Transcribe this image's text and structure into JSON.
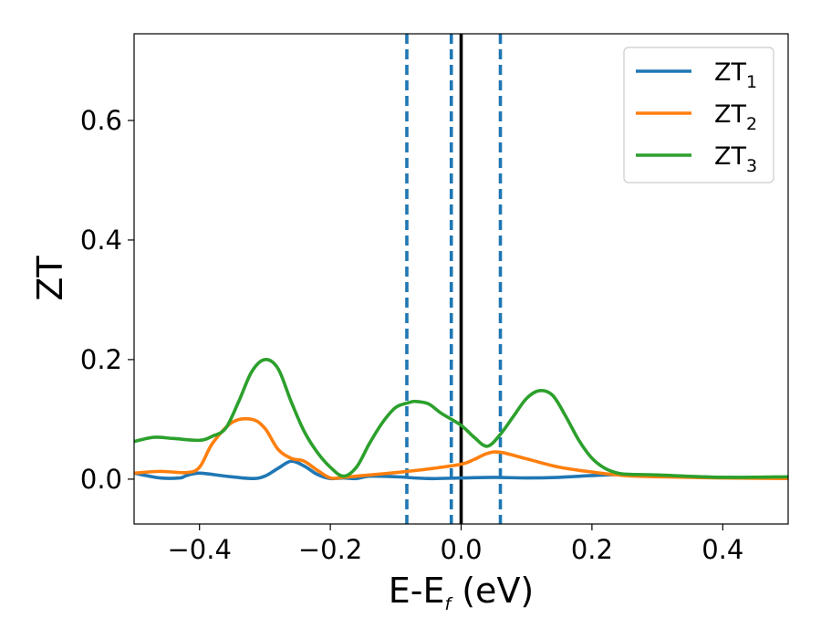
{
  "chart_data": {
    "type": "line",
    "title": "",
    "xlabel": "E-E",
    "xlabel_sub": "f",
    "xlabel_unit": " (eV)",
    "ylabel": "ZT",
    "xlim": [
      -0.5,
      0.5
    ],
    "ylim": [
      -0.075,
      0.745
    ],
    "xticks": [
      -0.4,
      -0.2,
      0.0,
      0.2,
      0.4
    ],
    "xtick_labels": [
      "−0.4",
      "−0.2",
      "0.0",
      "0.2",
      "0.4"
    ],
    "yticks": [
      0.0,
      0.2,
      0.4,
      0.6
    ],
    "ytick_labels": [
      "0.0",
      "0.2",
      "0.4",
      "0.6"
    ],
    "grid": false,
    "legend_position": "top-right",
    "vertical_lines": [
      {
        "x": -0.083,
        "style": "dashed",
        "color": "#1f77b4"
      },
      {
        "x": -0.015,
        "style": "dashed",
        "color": "#1f77b4"
      },
      {
        "x": 0.0,
        "style": "solid",
        "color": "#000000"
      },
      {
        "x": 0.06,
        "style": "dashed",
        "color": "#1f77b4"
      }
    ],
    "series": [
      {
        "name": "ZT",
        "name_sub": "1",
        "color": "#1f77b4",
        "x": [
          -0.5,
          -0.46,
          -0.43,
          -0.42,
          -0.4,
          -0.36,
          -0.32,
          -0.3,
          -0.28,
          -0.26,
          -0.24,
          -0.22,
          -0.2,
          -0.18,
          -0.16,
          -0.14,
          -0.1,
          -0.05,
          0.0,
          0.05,
          0.1,
          0.15,
          0.2,
          0.25,
          0.3,
          0.4,
          0.5
        ],
        "y": [
          0.01,
          0.002,
          0.002,
          0.006,
          0.01,
          0.005,
          0.001,
          0.005,
          0.018,
          0.03,
          0.022,
          0.008,
          0.001,
          0.002,
          0.001,
          0.005,
          0.004,
          0.001,
          0.002,
          0.003,
          0.002,
          0.003,
          0.006,
          0.008,
          0.006,
          0.003,
          0.003
        ]
      },
      {
        "name": "ZT",
        "name_sub": "2",
        "color": "#ff7f0e",
        "x": [
          -0.5,
          -0.46,
          -0.42,
          -0.4,
          -0.38,
          -0.35,
          -0.32,
          -0.3,
          -0.28,
          -0.26,
          -0.24,
          -0.22,
          -0.2,
          -0.18,
          -0.15,
          -0.1,
          -0.05,
          0.0,
          0.02,
          0.04,
          0.06,
          0.1,
          0.15,
          0.2,
          0.25,
          0.3,
          0.4,
          0.5
        ],
        "y": [
          0.01,
          0.013,
          0.011,
          0.02,
          0.06,
          0.095,
          0.1,
          0.085,
          0.05,
          0.035,
          0.03,
          0.015,
          0.002,
          0.003,
          0.006,
          0.011,
          0.017,
          0.025,
          0.033,
          0.043,
          0.045,
          0.034,
          0.02,
          0.012,
          0.006,
          0.004,
          0.002,
          0.001
        ]
      },
      {
        "name": "ZT",
        "name_sub": "3",
        "color": "#2ca02c",
        "x": [
          -0.5,
          -0.47,
          -0.44,
          -0.4,
          -0.38,
          -0.36,
          -0.34,
          -0.32,
          -0.3,
          -0.28,
          -0.26,
          -0.24,
          -0.22,
          -0.2,
          -0.18,
          -0.16,
          -0.14,
          -0.12,
          -0.1,
          -0.08,
          -0.07,
          -0.05,
          -0.03,
          0.0,
          0.02,
          0.04,
          0.06,
          0.08,
          0.1,
          0.12,
          0.14,
          0.16,
          0.18,
          0.2,
          0.22,
          0.24,
          0.26,
          0.3,
          0.4,
          0.5
        ],
        "y": [
          0.063,
          0.07,
          0.068,
          0.065,
          0.072,
          0.085,
          0.13,
          0.18,
          0.2,
          0.185,
          0.13,
          0.08,
          0.045,
          0.02,
          0.005,
          0.02,
          0.06,
          0.095,
          0.12,
          0.128,
          0.13,
          0.126,
          0.11,
          0.09,
          0.07,
          0.055,
          0.075,
          0.105,
          0.135,
          0.148,
          0.14,
          0.105,
          0.065,
          0.035,
          0.018,
          0.01,
          0.008,
          0.007,
          0.003,
          0.004
        ]
      }
    ]
  }
}
